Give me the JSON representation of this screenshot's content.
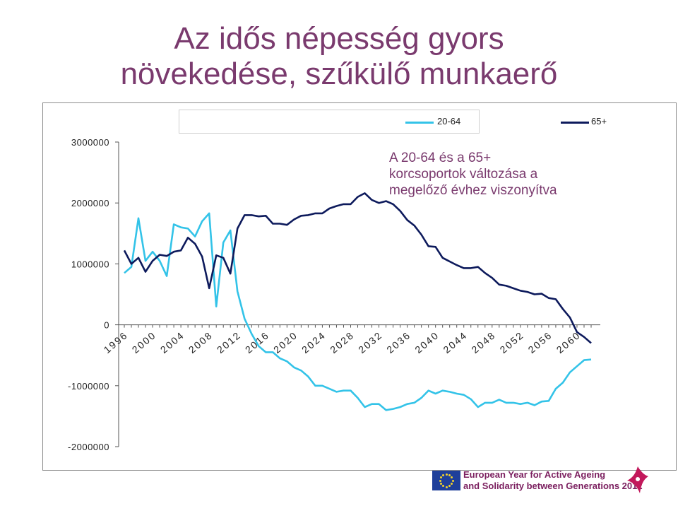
{
  "title_lines": [
    "Az idős népesség gyors",
    "növekedése, szűkülő munkaerő"
  ],
  "annotation": [
    "A 20-64 és a 65+",
    "korcsoportok változása a",
    "megelőző évhez viszonyítva"
  ],
  "footer": {
    "line1": "European Year for Active Ageing",
    "line2": "and Solidarity between Generations 2012"
  },
  "colors": {
    "series_20_64": "#33c3e8",
    "series_65": "#0d1a5c",
    "title": "#7a3a6e"
  },
  "chart_data": {
    "type": "line",
    "ylim": [
      -2000000,
      3000000
    ],
    "y_ticks": [
      3000000,
      2000000,
      1000000,
      0,
      -1000000,
      -2000000
    ],
    "x_tick_labels": [
      "1996",
      "2000",
      "2004",
      "2008",
      "2012",
      "2016",
      "2020",
      "2024",
      "2028",
      "2032",
      "2036",
      "2040",
      "2044",
      "2048",
      "2052",
      "2056",
      "2060"
    ],
    "x": [
      1996,
      1997,
      1998,
      1999,
      2000,
      2001,
      2002,
      2003,
      2004,
      2005,
      2006,
      2007,
      2008,
      2009,
      2010,
      2011,
      2012,
      2013,
      2014,
      2015,
      2016,
      2017,
      2018,
      2019,
      2020,
      2021,
      2022,
      2023,
      2024,
      2025,
      2026,
      2027,
      2028,
      2029,
      2030,
      2031,
      2032,
      2033,
      2034,
      2035,
      2036,
      2037,
      2038,
      2039,
      2040,
      2041,
      2042,
      2043,
      2044,
      2045,
      2046,
      2047,
      2048,
      2049,
      2050,
      2051,
      2052,
      2053,
      2054,
      2055,
      2056,
      2057,
      2058,
      2059,
      2060,
      2061,
      2062
    ],
    "series": [
      {
        "name": "20-64",
        "values": [
          850000,
          950000,
          1750000,
          1050000,
          1200000,
          1050000,
          800000,
          1650000,
          1600000,
          1580000,
          1450000,
          1700000,
          1830000,
          300000,
          1350000,
          1550000,
          550000,
          100000,
          -150000,
          -350000,
          -450000,
          -450000,
          -550000,
          -600000,
          -700000,
          -750000,
          -850000,
          -1000000,
          -1000000,
          -1050000,
          -1100000,
          -1080000,
          -1080000,
          -1200000,
          -1350000,
          -1300000,
          -1300000,
          -1400000,
          -1380000,
          -1350000,
          -1300000,
          -1280000,
          -1200000,
          -1080000,
          -1130000,
          -1080000,
          -1100000,
          -1130000,
          -1150000,
          -1220000,
          -1350000,
          -1280000,
          -1280000,
          -1230000,
          -1280000,
          -1280000,
          -1300000,
          -1280000,
          -1320000,
          -1260000,
          -1250000,
          -1050000,
          -950000,
          -780000,
          -680000,
          -580000,
          -570000
        ]
      },
      {
        "name": "65+",
        "values": [
          1220000,
          1000000,
          1100000,
          870000,
          1050000,
          1150000,
          1130000,
          1200000,
          1220000,
          1430000,
          1330000,
          1120000,
          600000,
          1140000,
          1100000,
          840000,
          1580000,
          1800000,
          1800000,
          1780000,
          1790000,
          1660000,
          1660000,
          1640000,
          1730000,
          1790000,
          1800000,
          1830000,
          1830000,
          1910000,
          1950000,
          1980000,
          1980000,
          2100000,
          2160000,
          2050000,
          2000000,
          2030000,
          1980000,
          1870000,
          1720000,
          1630000,
          1480000,
          1290000,
          1280000,
          1100000,
          1040000,
          980000,
          930000,
          930000,
          950000,
          850000,
          770000,
          660000,
          640000,
          600000,
          560000,
          540000,
          500000,
          510000,
          440000,
          420000,
          260000,
          120000,
          -120000,
          -200000,
          -300000
        ]
      }
    ]
  }
}
